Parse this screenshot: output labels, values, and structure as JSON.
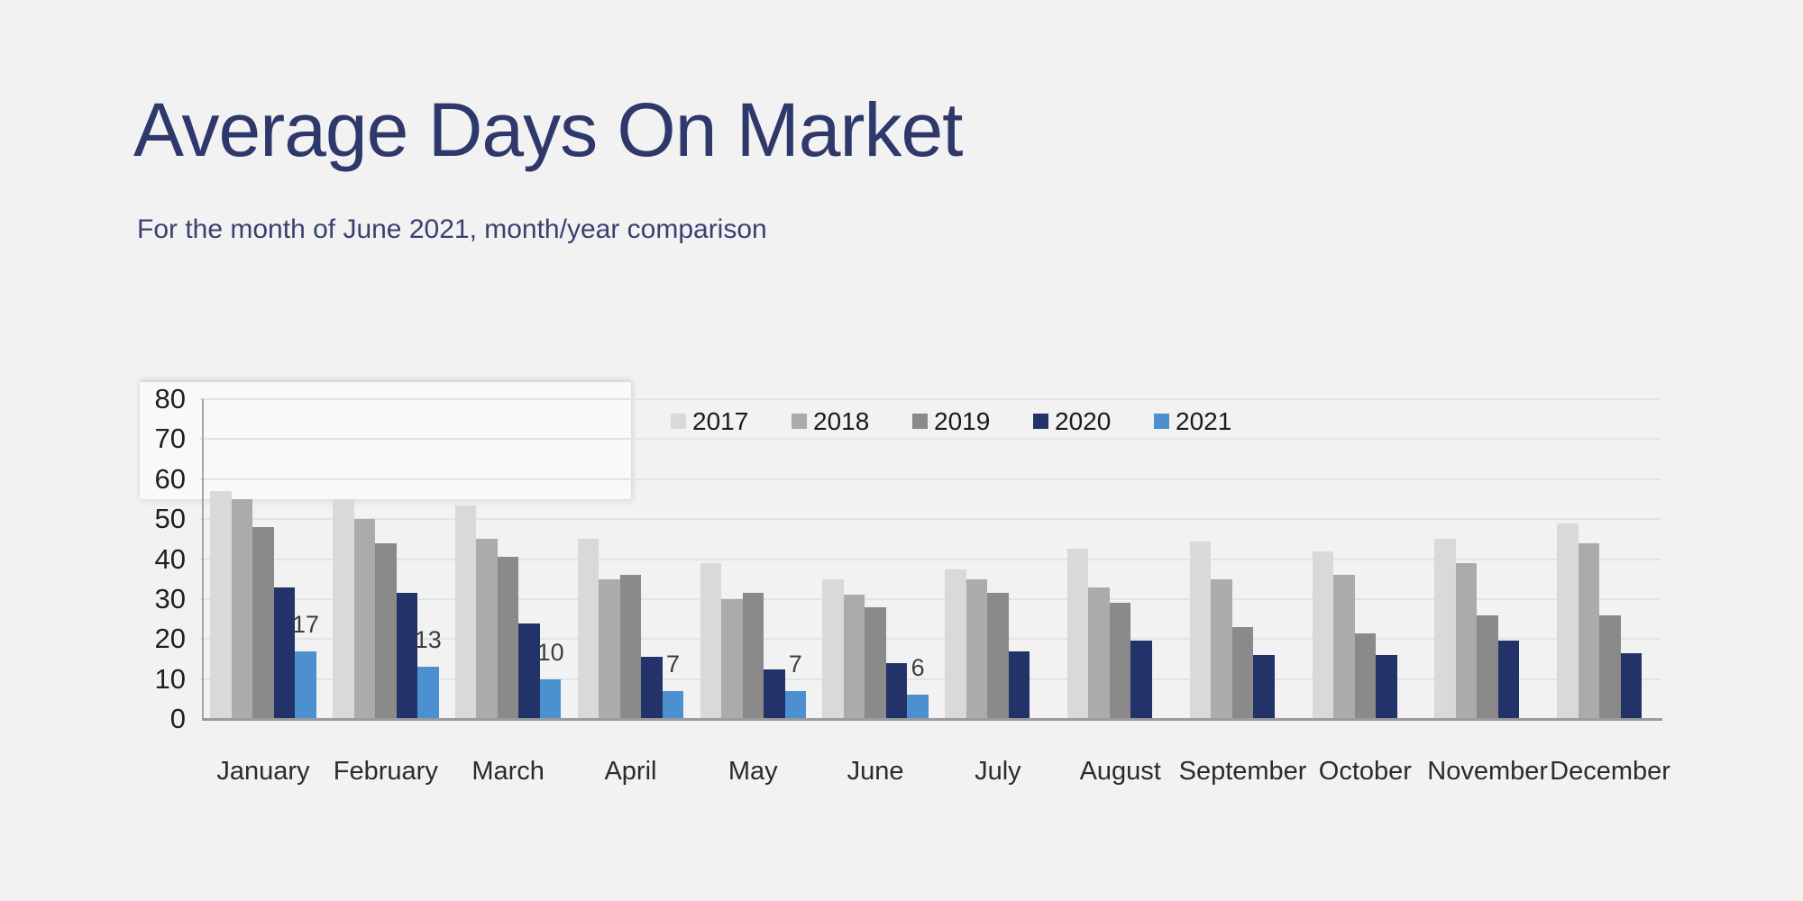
{
  "page": {
    "title": "Average Days On Market",
    "subtitle": "For the month of June 2021, month/year comparison"
  },
  "colors": {
    "background": "#f2f2f3",
    "title_navy": "#2f386b",
    "gridline": "#dde3ef",
    "axis_line": "#a6a6a6",
    "tick_text": "#1f1f1f"
  },
  "chart_data": {
    "type": "bar",
    "title": "Average Days On Market",
    "subtitle": "For the month of June 2021, month/year comparison",
    "categories": [
      "January",
      "February",
      "March",
      "April",
      "May",
      "June",
      "July",
      "August",
      "September",
      "October",
      "November",
      "December"
    ],
    "series": [
      {
        "name": "2017",
        "color": "#d9d9d9",
        "values": [
          57,
          55,
          53.5,
          45,
          39,
          35,
          37.5,
          42.5,
          44.5,
          42,
          45,
          49
        ]
      },
      {
        "name": "2018",
        "color": "#ababab",
        "values": [
          55,
          50,
          45,
          35,
          30,
          31,
          35,
          33,
          35,
          36,
          39,
          44
        ]
      },
      {
        "name": "2019",
        "color": "#8a8a8a",
        "values": [
          48,
          44,
          40.5,
          36,
          31.5,
          28,
          31.5,
          29,
          23,
          21.5,
          26,
          26
        ]
      },
      {
        "name": "2020",
        "color": "#233269",
        "values": [
          33,
          31.5,
          24,
          15.5,
          12.5,
          14,
          17,
          19.5,
          16,
          16,
          19.5,
          16.5
        ]
      },
      {
        "name": "2021",
        "color": "#4c90d0",
        "values": [
          17,
          13,
          10,
          7,
          7,
          6,
          null,
          null,
          null,
          null,
          null,
          null
        ],
        "data_labels": [
          "17",
          "13",
          "10",
          "7",
          "7",
          "6"
        ]
      }
    ],
    "ylabel": "",
    "xlabel": "",
    "ylim": [
      0,
      80
    ],
    "yticks": [
      0,
      10,
      20,
      30,
      40,
      50,
      60,
      70,
      80
    ],
    "grid": true,
    "legend_position": "top"
  }
}
